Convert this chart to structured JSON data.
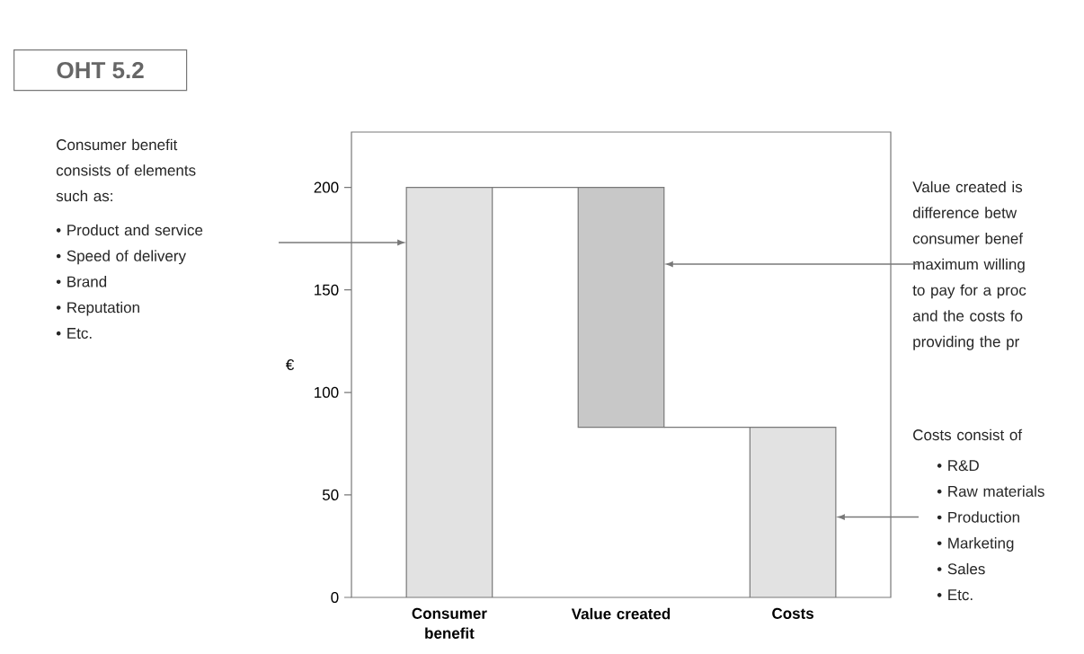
{
  "chart_data": {
    "type": "bar",
    "title": "OHT 5.2",
    "ylabel": "€",
    "categories": [
      "Consumer benefit",
      "Value created",
      "Costs"
    ],
    "values": [
      200,
      117,
      83
    ],
    "base": [
      0,
      83,
      0
    ],
    "colors": [
      "#e2e2e2",
      "#c8c8c8",
      "#e2e2e2"
    ],
    "ylim": [
      0,
      227
    ],
    "yticks": [
      0,
      50,
      100,
      150,
      200
    ],
    "grid": false,
    "annotations": [
      "Consumer benefit consists of elements such as:",
      "• Product and service",
      "• Speed of delivery",
      "• Brand",
      "• Reputation",
      "• Etc.",
      "Value created is",
      "difference betw",
      "consumer benef",
      "maximum willing",
      "to pay for a proc",
      "and the costs fo",
      "providing the pr",
      "Costs consist of",
      "• R&D",
      "• Raw materials",
      "• Production",
      "• Marketing",
      "• Sales",
      "• Etc."
    ]
  }
}
